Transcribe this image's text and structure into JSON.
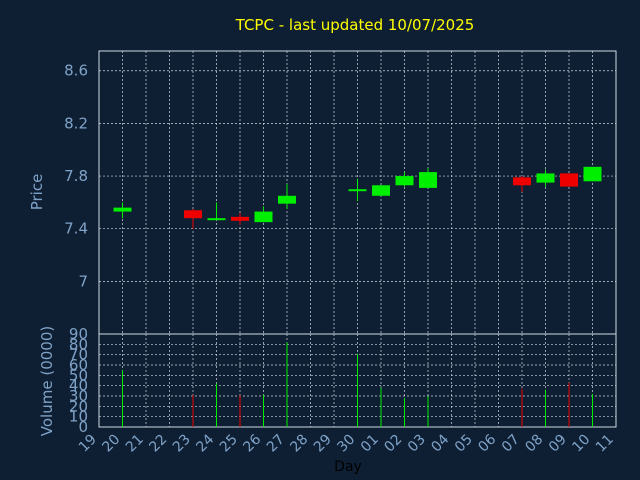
{
  "chart_data": [
    {
      "type": "candlestick",
      "title": "TCPC - last updated 10/07/2025",
      "ylabel": "Price",
      "ylim": [
        6.6,
        8.75
      ],
      "yticks": [
        7,
        7.4,
        7.8,
        8.2,
        8.6
      ],
      "ytick_labels": [
        "7",
        "7.4",
        "7.8",
        "8.2",
        "8.6"
      ],
      "grid": true,
      "x_tick_labels": [
        "19",
        "20",
        "21",
        "22",
        "23",
        "24",
        "25",
        "26",
        "27",
        "28",
        "29",
        "30",
        "01",
        "02",
        "03",
        "04",
        "05",
        "06",
        "07",
        "08",
        "09",
        "10",
        "11"
      ],
      "candles": [
        {
          "x": "20",
          "open": 7.53,
          "high": 7.6,
          "low": 7.48,
          "close": 7.56
        },
        {
          "x": "23",
          "open": 7.54,
          "high": 7.55,
          "low": 7.4,
          "close": 7.48
        },
        {
          "x": "24",
          "open": 7.47,
          "high": 7.6,
          "low": 7.47,
          "close": 7.48
        },
        {
          "x": "25",
          "open": 7.49,
          "high": 7.52,
          "low": 7.43,
          "close": 7.46
        },
        {
          "x": "26",
          "open": 7.45,
          "high": 7.57,
          "low": 7.45,
          "close": 7.53
        },
        {
          "x": "27",
          "open": 7.59,
          "high": 7.74,
          "low": 7.55,
          "close": 7.65
        },
        {
          "x": "30",
          "open": 7.69,
          "high": 7.78,
          "low": 7.61,
          "close": 7.7
        },
        {
          "x": "01",
          "open": 7.65,
          "high": 7.73,
          "low": 7.65,
          "close": 7.73
        },
        {
          "x": "02",
          "open": 7.73,
          "high": 7.83,
          "low": 7.72,
          "close": 7.8
        },
        {
          "x": "03",
          "open": 7.71,
          "high": 7.86,
          "low": 7.71,
          "close": 7.83
        },
        {
          "x": "07",
          "open": 7.79,
          "high": 7.8,
          "low": 7.68,
          "close": 7.73
        },
        {
          "x": "08",
          "open": 7.75,
          "high": 7.85,
          "low": 7.72,
          "close": 7.82
        },
        {
          "x": "09",
          "open": 7.82,
          "high": 7.82,
          "low": 7.72,
          "close": 7.72
        },
        {
          "x": "10",
          "open": 7.76,
          "high": 7.87,
          "low": 7.76,
          "close": 7.87
        }
      ],
      "colors": {
        "up": "#00ee00",
        "down": "#ee0000",
        "grid": "#cfd8e2",
        "background": "#0f1f33",
        "title": "#ffff00",
        "text": "#7fa3c8"
      }
    },
    {
      "type": "bar",
      "ylabel": "Volume (0000)",
      "xlabel": "Day",
      "ylim": [
        0,
        90
      ],
      "yticks": [
        0,
        10,
        20,
        30,
        40,
        50,
        60,
        70,
        80,
        90
      ],
      "ytick_labels": [
        "0",
        "10",
        "20",
        "30",
        "40",
        "50",
        "60",
        "70",
        "80",
        "90"
      ],
      "x_tick_labels": [
        "19",
        "20",
        "21",
        "22",
        "23",
        "24",
        "25",
        "26",
        "27",
        "28",
        "29",
        "30",
        "01",
        "02",
        "03",
        "04",
        "05",
        "06",
        "07",
        "08",
        "09",
        "10",
        "11"
      ],
      "bars": [
        {
          "x": "20",
          "value": 55,
          "direction": "up"
        },
        {
          "x": "23",
          "value": 31,
          "direction": "down"
        },
        {
          "x": "24",
          "value": 42,
          "direction": "up"
        },
        {
          "x": "25",
          "value": 31,
          "direction": "down"
        },
        {
          "x": "26",
          "value": 31,
          "direction": "up"
        },
        {
          "x": "27",
          "value": 82,
          "direction": "up"
        },
        {
          "x": "30",
          "value": 71,
          "direction": "up"
        },
        {
          "x": "01",
          "value": 38,
          "direction": "up"
        },
        {
          "x": "02",
          "value": 28,
          "direction": "up"
        },
        {
          "x": "03",
          "value": 30,
          "direction": "up"
        },
        {
          "x": "07",
          "value": 37,
          "direction": "down"
        },
        {
          "x": "08",
          "value": 36,
          "direction": "up"
        },
        {
          "x": "09",
          "value": 43,
          "direction": "down"
        },
        {
          "x": "10",
          "value": 32,
          "direction": "up"
        }
      ]
    }
  ]
}
